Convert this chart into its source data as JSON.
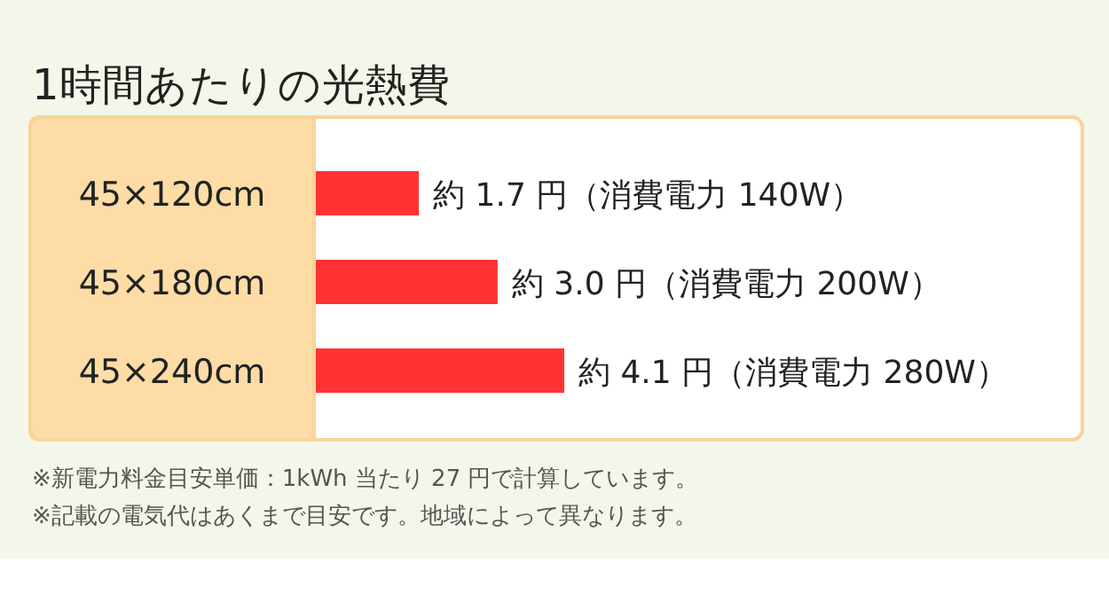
{
  "chart_data": {
    "type": "bar",
    "orientation": "horizontal",
    "title": "1時間あたりの光熱費",
    "categories": [
      "45×120cm",
      "45×180cm",
      "45×240cm"
    ],
    "values": [
      1.7,
      3.0,
      4.1
    ],
    "color": "#ff3333",
    "value_labels": [
      "約 1.7 円（消費電力 140W）",
      "約 3.0 円（消費電力 200W）",
      "約 4.1 円（消費電力 280W）"
    ],
    "annotations": [
      "※新電力料金目安単価：1kWh 当たり 27 円で計算しています。",
      "※記載の電気代はあくまで目安です。地域によって異なります。"
    ]
  }
}
